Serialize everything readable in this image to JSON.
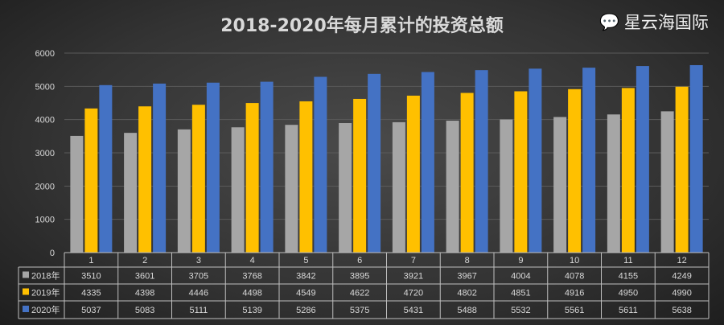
{
  "chart_data": {
    "type": "bar",
    "title": "2018-2020年每月累计的投资总额",
    "categories": [
      "1",
      "2",
      "3",
      "4",
      "5",
      "6",
      "7",
      "8",
      "9",
      "10",
      "11",
      "12"
    ],
    "series": [
      {
        "name": "2018年",
        "color": "#a6a6a6",
        "values": [
          3510,
          3601,
          3705,
          3768,
          3842,
          3895,
          3921,
          3967,
          4004,
          4078,
          4155,
          4249
        ]
      },
      {
        "name": "2019年",
        "color": "#ffc000",
        "values": [
          4335,
          4398,
          4446,
          4498,
          4549,
          4622,
          4720,
          4802,
          4851,
          4916,
          4950,
          4990
        ]
      },
      {
        "name": "2020年",
        "color": "#4472c4",
        "values": [
          5037,
          5083,
          5111,
          5139,
          5286,
          5375,
          5431,
          5488,
          5532,
          5561,
          5611,
          5638
        ]
      }
    ],
    "ylim": [
      0,
      6000
    ],
    "yticks": [
      "0",
      "1000",
      "2000",
      "3000",
      "4000",
      "5000",
      "6000"
    ],
    "grid": true,
    "legend": "data-table"
  },
  "watermark": {
    "text": "星云海国际",
    "icon": "wechat-icon"
  }
}
